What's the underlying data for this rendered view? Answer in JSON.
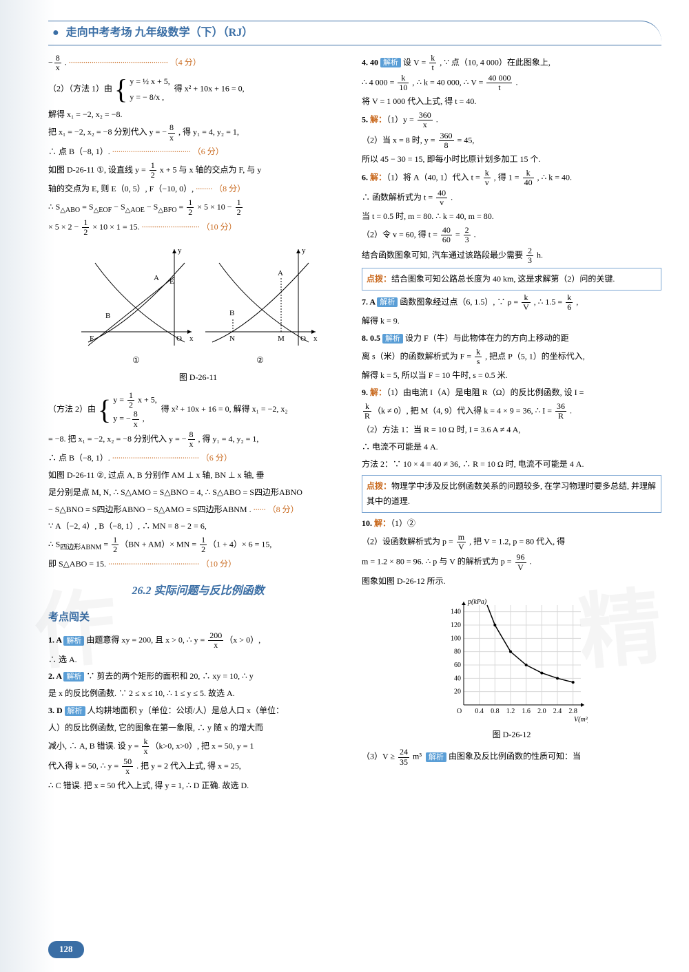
{
  "header": {
    "title": "走向中考考场 九年级数学（下）（RJ）"
  },
  "pageNumber": "128",
  "watermark": {
    "left": "作",
    "right": "精"
  },
  "left": {
    "l1": "− 8/x . ",
    "l1_score": "（4 分）",
    "l2_pre": "（2）（方法 1）由",
    "l2_sys_a": "y = ½ x + 5,",
    "l2_sys_b": "y = − 8/x ,",
    "l2_post": "得 x² + 10x + 16 = 0,",
    "l3": "解得 x₁ = −2, x₂ = −8.",
    "l4": "把 x₁ = −2, x₂ = −8 分别代入 y = − 8/x , 得 y₁ = 4, y₂ = 1,",
    "l5": "∴ 点 B（−8, 1）. ",
    "l5_score": "（6 分）",
    "l6": "如图 D-26-11 ①, 设直线 y = ½ x + 5 与 x 轴的交点为 F, 与 y",
    "l7": "轴的交点为 E, 则 E（0, 5）, F（−10, 0）,  ",
    "l7_score": "（8 分）",
    "l8": "∴ S△ABO = S△EOF − S△AOE − S△BFO = ½ × 5 × 10 − ½",
    "l9": "× 5 × 2 − ½ × 10 × 1 = 15. ",
    "l9_score": "（10 分）",
    "fig_labels": {
      "left_num": "①",
      "right_num": "②",
      "caption": "图 D-26-11",
      "axes": [
        "x",
        "y",
        "O",
        "A",
        "B",
        "E",
        "F",
        "M",
        "N"
      ]
    },
    "m2_pre": "（方法 2）由",
    "m2_post": "得 x² + 10x + 16 = 0, 解得 x₁ = −2, x₂",
    "m3": "= −8. 把 x₁ = −2, x₂ = −8 分别代入 y = − 8/x , 得 y₁ = 4, y₂ = 1,",
    "m4": "∴ 点 B（−8, 1）. ",
    "m4_score": "（6 分）",
    "m5": "如图 D-26-11 ②, 过点 A, B 分别作 AM ⊥ x 轴, BN ⊥ x 轴, 垂",
    "m6": "足分别是点 M, N, ∴ S△AMO = S△BNO = 4, ∴ S△ABO = S四边形ABNO",
    "m7": "− S△BNO = S四边形ABNO − S△AMO = S四边形ABNM .  ",
    "m7_score": "（8 分）",
    "m8": "∵ A（−2, 4）, B（−8, 1）, ∴ MN = 8 − 2 = 6,",
    "m9": "∴ S四边形ABNM = ½（BN + AM）× MN = ½（1 + 4）× 6 = 15,",
    "m10": "即 S△ABO = 15. ",
    "m10_score": "（10 分）",
    "section": "26.2 实际问题与反比例函数",
    "subhead": "考点闯关",
    "q1": "1. A ",
    "q1_txt": " 由题意得 xy = 200, 且 x > 0, ∴ y = 200/x（x > 0）,",
    "q1b": "∴ 选 A.",
    "q2": "2. A ",
    "q2_txt": " ∵ 剪去的两个矩形的面积和 20, ∴ xy = 10, ∴ y",
    "q2b": "是 x 的反比例函数. ∵ 2 ≤ x ≤ 10, ∴ 1 ≤ y ≤ 5. 故选 A.",
    "q3": "3. D ",
    "q3_txt": " 人均耕地面积 y（单位：公顷/人）是总人口 x（单位：",
    "q3b": "人）的反比例函数, 它的图象在第一象限, ∴ y 随 x 的增大而",
    "q3c": "减小, ∴ A, B 错误. 设 y = k/x（k>0, x>0）, 把 x = 50, y = 1",
    "q3d": "代入得 k = 50, ∴ y = 50/x . 把 y = 2 代入上式, 得 x = 25,",
    "q3e": "∴ C 错误. 把 x = 50 代入上式, 得 y = 1, ∴ D 正确. 故选 D."
  },
  "right": {
    "r1": "4. 40 ",
    "r1_txt": " 设 V = k/t , ∵ 点（10, 4 000）在此图象上,",
    "r2": "∴ 4 000 = k/10 , ∴ k = 40 000, ∴ V = 40 000/t .",
    "r3": "将 V = 1 000 代入上式, 得 t = 40.",
    "r5_pre": "5. ",
    "r5": "（1）y = 360/x .",
    "r6": "（2）当 x = 8 时, y = 360/8 = 45,",
    "r7": "所以 45 − 30 = 15, 即每小时比原计划多加工 15 个.",
    "r8_pre": "6. ",
    "r8": "（1）将 A（40, 1）代入 t = k/v , 得 1 = k/40 , ∴ k = 40.",
    "r9": "∴ 函数解析式为 t = 40/v .",
    "r10": "当 t = 0.5 时, m = 80. ∴ k = 40, m = 80.",
    "r11": "（2）令 v = 60, 得 t = 40/60 = 2/3 .",
    "r12": "结合函数图象可知, 汽车通过该路段最少需要 2/3 h.",
    "dianbo1": "结合图象可知公路总长度为 40 km, 这是求解第（2）问的关键.",
    "r13": "7. A ",
    "r13_txt": " 函数图象经过点（6, 1.5）, ∵ ρ = k/V , ∴ 1.5 = k/6 ,",
    "r13b": "解得 k = 9.",
    "r14": "8. 0.5 ",
    "r14_txt": " 设力 F（牛）与此物体在力的方向上移动的距",
    "r14b": "离 s（米）的函数解析式为 F = k/s , 把点 P（5, 1）的坐标代入,",
    "r14c": "解得 k = 5, 所以当 F = 10 牛时, s = 0.5 米.",
    "r15_pre": "9. ",
    "r15": "（1）由电流 I（A）是电阻 R（Ω）的反比例函数, 设 I =",
    "r16": "k/R（k ≠ 0）, 把 M（4, 9）代入得 k = 4 × 9 = 36, ∴ I = 36/R .",
    "r17": "（2）方法 1：当 R = 10 Ω 时, I = 3.6 A ≠ 4 A,",
    "r18": "∴ 电流不可能是 4 A.",
    "r19": "方法 2：∵ 10 × 4 = 40 ≠ 36, ∴ R = 10 Ω 时, 电流不可能是 4 A.",
    "dianbo2": "物理学中涉及反比例函数关系的问题较多, 在学习物理时要多总结, 并理解其中的道理.",
    "r20_pre": "10. ",
    "r20": "（1）②",
    "r21": "（2）设函数解析式为 p = m/V , 把 V = 1.2, p = 80 代入, 得",
    "r22": "m = 1.2 × 80 = 96. ∴ p 与 V 的解析式为 p = 96/V .",
    "r23": "图象如图 D-26-12 所示.",
    "chart": {
      "type": "line",
      "caption": "图 D-26-12",
      "xlabel": "V(m³)",
      "ylabel": "p(kPa)",
      "xticks": [
        "0.4",
        "0.8",
        "1.2",
        "1.6",
        "2.0",
        "2.4",
        "2.8"
      ],
      "yticks": [
        20,
        40,
        60,
        80,
        100,
        120,
        140
      ],
      "xlim": [
        0,
        3.0
      ],
      "ylim": [
        0,
        150
      ],
      "curve_pts": [
        [
          0.6,
          160
        ],
        [
          0.8,
          120
        ],
        [
          1.2,
          80
        ],
        [
          1.6,
          60
        ],
        [
          2.0,
          48
        ],
        [
          2.4,
          40
        ],
        [
          2.8,
          34
        ]
      ],
      "background": "#ffffff",
      "grid_color": "#d8d8d8",
      "axis_color": "#000000",
      "curve_color": "#000000",
      "font_size": 10
    },
    "r24": "（3）V ≥ 24/35 m³ ",
    "r24_txt": " 由图象及反比例函数的性质可知：当"
  },
  "labels": {
    "jiexi": "解析",
    "jie": "解：",
    "dianbo": "点拨："
  }
}
